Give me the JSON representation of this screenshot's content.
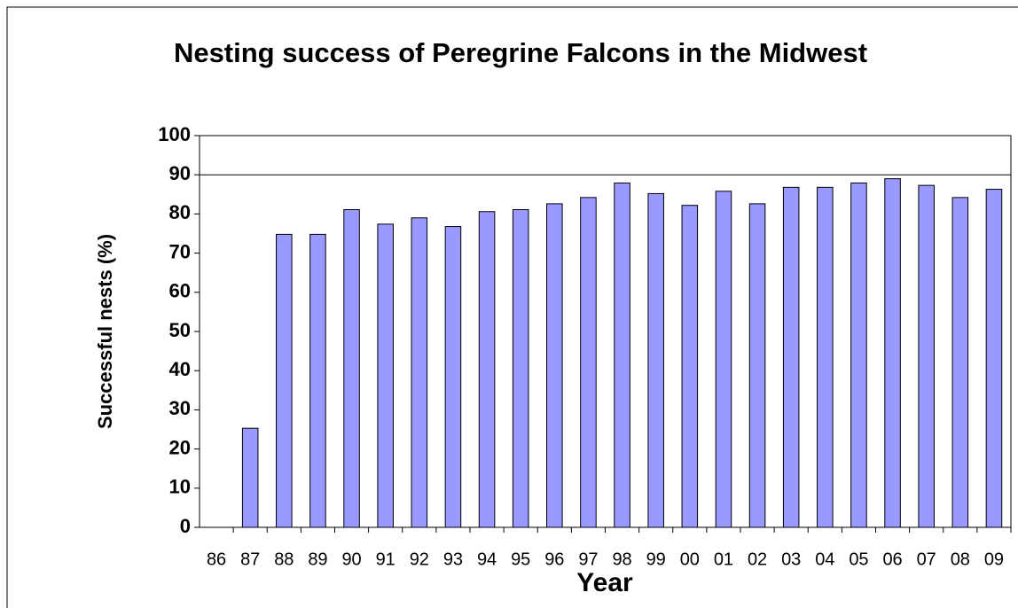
{
  "chart_data": {
    "type": "bar",
    "title": "Nesting success of Peregrine Falcons in the Midwest",
    "x_label": "Year",
    "y_label": "Successful nests (%)",
    "categories": [
      "86",
      "87",
      "88",
      "89",
      "90",
      "91",
      "92",
      "93",
      "94",
      "95",
      "96",
      "97",
      "98",
      "99",
      "00",
      "01",
      "02",
      "03",
      "04",
      "05",
      "06",
      "07",
      "08",
      "09"
    ],
    "values": [
      null,
      25.3,
      74.8,
      74.8,
      81.1,
      77.4,
      79,
      76.8,
      80.6,
      81.1,
      82.6,
      84.2,
      87.9,
      85.2,
      82.2,
      85.8,
      82.6,
      86.8,
      86.8,
      87.9,
      89,
      87.3,
      84.2,
      86.3
    ],
    "color": "#9999ff",
    "ylim": [
      0,
      100
    ],
    "yticks": [
      0,
      10,
      20,
      30,
      40,
      50,
      60,
      70,
      80,
      90,
      100
    ],
    "ygrid": [
      90
    ]
  }
}
